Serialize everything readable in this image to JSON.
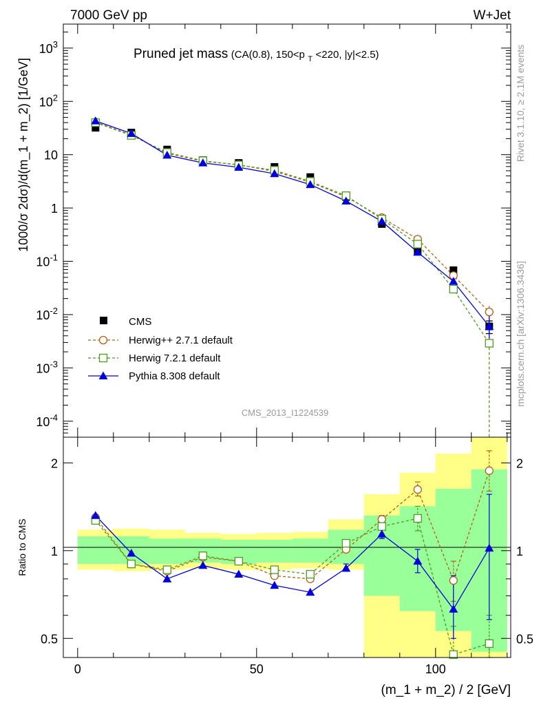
{
  "chart_data": {
    "type": "line",
    "header_left": "7000 GeV pp",
    "header_right": "W+Jet",
    "title_main": "Pruned jet mass",
    "title_cuts_a": "(CA(0.8), 150<p",
    "title_cuts_sub": "T",
    "title_cuts_b": "<220, |y|<2.5)",
    "side_label_top": "Rivet 3.1.10, ≥ 2.1M events",
    "side_label_bottom": "mcplots.cern.ch [arXiv:1306.3436]",
    "analysis_id": "CMS_2013_I1224539",
    "ylabel": "1000/σ 2dσ)/d(m_1 + m_2) [1/GeV]",
    "ratio_ylabel": "Ratio to CMS",
    "xlabel": "(m_1 + m_2) / 2 [GeV]",
    "x_ticks": [
      "0",
      "50",
      "100"
    ],
    "main_y_ticks": [
      "10^-4",
      "10^-3",
      "10^-2",
      "10^-1",
      "1",
      "10",
      "10^2",
      "10^3"
    ],
    "ratio_y_ticks": [
      "0.5",
      "1",
      "2"
    ],
    "xlim": [
      -4,
      121
    ],
    "ylim_main_log10": [
      -4.3,
      3.45
    ],
    "ylim_ratio": [
      0.43,
      2.45
    ],
    "y_scale": "log",
    "ratio_scale": "log",
    "legend_position": "lower-left",
    "bin_edges": [
      0,
      10,
      20,
      30,
      40,
      50,
      60,
      70,
      80,
      90,
      100,
      110,
      120
    ],
    "x": [
      5,
      15,
      25,
      35,
      45,
      55,
      65,
      75,
      85,
      95,
      105,
      115
    ],
    "band_yellow": [
      {
        "lo": 0.86,
        "hi": 1.18
      },
      {
        "lo": 0.85,
        "hi": 1.19
      },
      {
        "lo": 0.86,
        "hi": 1.18
      },
      {
        "lo": 0.87,
        "hi": 1.15
      },
      {
        "lo": 0.86,
        "hi": 1.14
      },
      {
        "lo": 0.86,
        "hi": 1.15
      },
      {
        "lo": 0.87,
        "hi": 1.16
      },
      {
        "lo": 0.86,
        "hi": 1.28
      },
      {
        "lo": 0.41,
        "hi": 1.56
      },
      {
        "lo": 0.38,
        "hi": 1.85
      },
      {
        "lo": 0.38,
        "hi": 2.15
      },
      {
        "lo": 0.38,
        "hi": 2.45
      }
    ],
    "band_green": [
      {
        "lo": 0.9,
        "hi": 1.12
      },
      {
        "lo": 0.9,
        "hi": 1.12
      },
      {
        "lo": 0.9,
        "hi": 1.1
      },
      {
        "lo": 0.91,
        "hi": 1.1
      },
      {
        "lo": 0.9,
        "hi": 1.09
      },
      {
        "lo": 0.91,
        "hi": 1.09
      },
      {
        "lo": 0.91,
        "hi": 1.1
      },
      {
        "lo": 0.9,
        "hi": 1.18
      },
      {
        "lo": 0.7,
        "hi": 1.32
      },
      {
        "lo": 0.62,
        "hi": 1.42
      },
      {
        "lo": 0.53,
        "hi": 1.63
      },
      {
        "lo": 0.45,
        "hi": 1.9
      }
    ],
    "series": [
      {
        "name": "CMS",
        "color": "#000000",
        "marker": "filled-square",
        "line": "none",
        "values": [
          32,
          26,
          12.5,
          7.9,
          7.0,
          5.9,
          3.8,
          1.6,
          0.5,
          0.16,
          0.068,
          0.006
        ],
        "err_lo": [
          29,
          24,
          11.8,
          7.5,
          6.6,
          5.5,
          3.5,
          1.5,
          0.46,
          0.15,
          0.062,
          0.0044
        ],
        "err_hi": [
          35,
          28,
          13.2,
          8.3,
          7.4,
          6.3,
          4.1,
          1.7,
          0.54,
          0.17,
          0.074,
          0.0076
        ]
      },
      {
        "name": "Herwig++ 2.7.1 default",
        "color": "#b35f14",
        "marker": "open-circle",
        "line": "dashed",
        "values": [
          41,
          23.5,
          10.6,
          7.5,
          6.5,
          4.85,
          3.05,
          1.62,
          0.66,
          0.26,
          0.054,
          0.0112
        ],
        "ratio": [
          1.3,
          0.9,
          0.85,
          0.95,
          0.92,
          0.82,
          0.8,
          1.01,
          1.28,
          1.62,
          0.79,
          1.88
        ],
        "ratio_err": [
          null,
          null,
          null,
          null,
          null,
          null,
          null,
          null,
          {
            "lo": 1.25,
            "hi": 1.32
          },
          {
            "lo": 1.54,
            "hi": 1.72
          },
          {
            "lo": 0.67,
            "hi": 0.92
          },
          {
            "lo": 1.6,
            "hi": 2.2
          }
        ]
      },
      {
        "name": "Herwig 7.2.1 default",
        "color": "#4c9a1e",
        "marker": "open-square",
        "line": "dashed",
        "values": [
          40,
          23,
          11,
          7.7,
          6.4,
          5.1,
          3.15,
          1.7,
          0.62,
          0.21,
          0.03,
          0.0029
        ],
        "ratio": [
          1.27,
          0.9,
          0.86,
          0.96,
          0.92,
          0.86,
          0.83,
          1.06,
          1.21,
          1.29,
          0.44,
          0.48
        ],
        "ratio_err": [
          null,
          null,
          null,
          null,
          null,
          null,
          null,
          null,
          {
            "lo": 1.18,
            "hi": 1.26
          },
          {
            "lo": 1.17,
            "hi": 1.42
          },
          {
            "lo": 0.41,
            "hi": 0.55
          },
          {
            "lo": 0.38,
            "hi": 0.6
          }
        ]
      },
      {
        "name": "Pythia 8.308 default",
        "color": "#0000dd",
        "marker": "filled-triangle",
        "line": "solid",
        "values": [
          43,
          25,
          9.8,
          7.0,
          5.8,
          4.4,
          2.75,
          1.35,
          0.56,
          0.148,
          0.042,
          0.006
        ],
        "ratio": [
          1.32,
          0.98,
          0.8,
          0.89,
          0.83,
          0.76,
          0.72,
          0.87,
          1.14,
          0.92,
          0.63,
          1.02
        ],
        "ratio_err": [
          null,
          null,
          null,
          null,
          null,
          null,
          null,
          {
            "lo": 0.85,
            "hi": 0.9
          },
          {
            "lo": 1.1,
            "hi": 1.19
          },
          {
            "lo": 0.84,
            "hi": 1.01
          },
          {
            "lo": 0.5,
            "hi": 0.82
          },
          {
            "lo": 0.58,
            "hi": 1.56
          }
        ]
      }
    ]
  }
}
